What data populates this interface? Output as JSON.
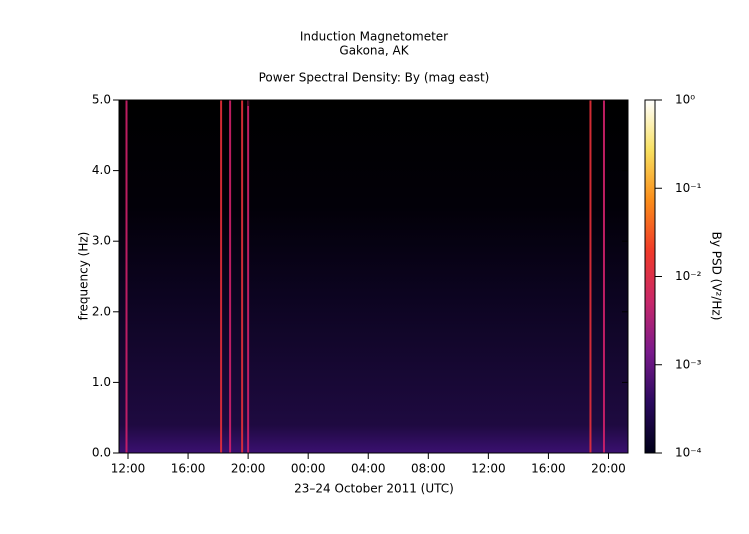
{
  "chart_data": {
    "type": "spectrogram",
    "title": "Induction Magnetometer",
    "subtitle": "Gakona, AK",
    "plot_title": "Power Spectral Density: By (mag east)",
    "xlabel": "23–24 October 2011 (UTC)",
    "ylabel": "frequency (Hz)",
    "xlim": [
      11.4,
      45.3
    ],
    "xticks": [
      {
        "value": 12,
        "label": "12:00"
      },
      {
        "value": 16,
        "label": "16:00"
      },
      {
        "value": 20,
        "label": "20:00"
      },
      {
        "value": 24,
        "label": "00:00"
      },
      {
        "value": 28,
        "label": "04:00"
      },
      {
        "value": 32,
        "label": "08:00"
      },
      {
        "value": 36,
        "label": "12:00"
      },
      {
        "value": 40,
        "label": "16:00"
      },
      {
        "value": 44,
        "label": "20:00"
      }
    ],
    "ylim": [
      0,
      5
    ],
    "yticks": [
      {
        "value": 0,
        "label": "0.0"
      },
      {
        "value": 1,
        "label": "1.0"
      },
      {
        "value": 2,
        "label": "2.0"
      },
      {
        "value": 3,
        "label": "3.0"
      },
      {
        "value": 4,
        "label": "4.0"
      },
      {
        "value": 5,
        "label": "5.0"
      }
    ],
    "bright_lines": [
      11.9,
      18.2,
      18.8,
      19.6,
      20.0,
      42.8,
      43.7
    ],
    "colorbar": {
      "label": "By PSD (V²/Hz)",
      "log": true,
      "lim": [
        0.0001,
        1
      ],
      "ticks": [
        {
          "value": 0.0001,
          "label": "10⁻⁴"
        },
        {
          "value": 0.001,
          "label": "10⁻³"
        },
        {
          "value": 0.01,
          "label": "10⁻²"
        },
        {
          "value": 0.1,
          "label": "10⁻¹"
        },
        {
          "value": 1,
          "label": "10⁰"
        }
      ],
      "colormap": [
        "#000018",
        "#2a0a5e",
        "#7a1a8c",
        "#c8286a",
        "#f03a2a",
        "#fa8c1a",
        "#f8e060",
        "#ffffff"
      ]
    }
  }
}
